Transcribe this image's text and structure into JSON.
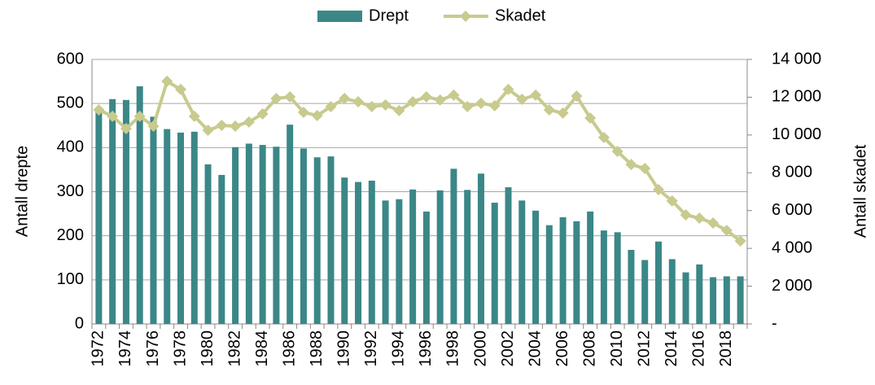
{
  "chart_data": {
    "type": "bar_line",
    "categories": [
      "1972",
      null,
      "1974",
      null,
      "1976",
      null,
      "1978",
      null,
      "1980",
      null,
      "1982",
      null,
      "1984",
      null,
      "1986",
      null,
      "1988",
      null,
      "1990",
      null,
      "1992",
      null,
      "1994",
      null,
      "1996",
      null,
      "1998",
      null,
      "2000",
      null,
      "2002",
      null,
      "2004",
      null,
      "2006",
      null,
      "2008",
      null,
      "2010",
      null,
      "2012",
      null,
      "2014",
      null,
      "2016",
      null,
      "2018",
      null
    ],
    "series": [
      {
        "name": "Drept",
        "type": "bar",
        "color": "#3b8787",
        "values": [
          490,
          510,
          508,
          539,
          470,
          442,
          434,
          436,
          362,
          338,
          401,
          409,
          406,
          402,
          452,
          398,
          378,
          380,
          332,
          322,
          325,
          280,
          283,
          305,
          255,
          303,
          352,
          304,
          341,
          275,
          310,
          280,
          257,
          224,
          242,
          233,
          255,
          212,
          208,
          168,
          145,
          187,
          147,
          117,
          135,
          106,
          108,
          108
        ]
      },
      {
        "name": "Skadet",
        "type": "line",
        "axis": "y2",
        "color": "#c8ca8e",
        "values": [
          11330,
          10990,
          10340,
          10990,
          10470,
          12840,
          12410,
          10990,
          10250,
          10510,
          10470,
          10690,
          11120,
          11930,
          12020,
          11200,
          11030,
          11500,
          11930,
          11760,
          11500,
          11590,
          11290,
          11760,
          12020,
          11850,
          12110,
          11500,
          11680,
          11550,
          12410,
          11890,
          12110,
          11330,
          11160,
          12060,
          10900,
          9870,
          9130,
          8440,
          8230,
          7110,
          6510,
          5770,
          5600,
          5340,
          4950,
          4390
        ]
      }
    ],
    "y_label": "Antall drepte",
    "y2_label": "Antall skadet",
    "ylim": [
      0,
      600
    ],
    "yticks": [
      0,
      100,
      200,
      300,
      400,
      500,
      600
    ],
    "y2lim": [
      0,
      14000
    ],
    "y2ticks": [
      {
        "value": 0,
        "label": "-"
      },
      {
        "value": 2000,
        "label": "2 000"
      },
      {
        "value": 4000,
        "label": "4 000"
      },
      {
        "value": 6000,
        "label": "6 000"
      },
      {
        "value": 8000,
        "label": "8 000"
      },
      {
        "value": 10000,
        "label": "10 000"
      },
      {
        "value": 12000,
        "label": "12 000"
      },
      {
        "value": 14000,
        "label": "14 000"
      }
    ],
    "grid": true,
    "legend": "top"
  }
}
